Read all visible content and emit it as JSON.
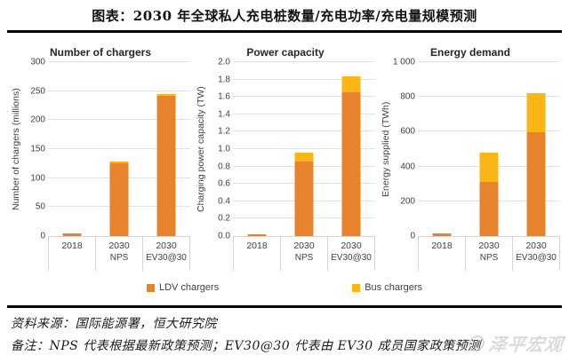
{
  "page": {
    "title": "图表：2030 年全球私人充电桩数量/充电功率/充电量规模预测",
    "source": "资料来源：国际能源署，恒大研究院",
    "note": "备注：NPS 代表根据最新政策预测；EV30@30 代表由 EV30 成员国家政策预测",
    "watermark": "泽平宏观"
  },
  "colors": {
    "ldv": "#e8822b",
    "bus": "#fbb616",
    "grid": "#e2e2e2",
    "axis_text": "#3f3f3f"
  },
  "legend": [
    {
      "label": "LDV chargers",
      "color_key": "ldv"
    },
    {
      "label": "Bus chargers",
      "color_key": "bus"
    }
  ],
  "chart_data": [
    {
      "type": "bar",
      "stacked": true,
      "title": "Number of chargers",
      "ylabel": "Number of chargers (millions)",
      "ylim": [
        0,
        300
      ],
      "yticks": [
        0,
        50,
        100,
        150,
        200,
        250,
        300
      ],
      "ytick_labels": [
        "0",
        "50",
        "100",
        "150",
        "200",
        "250",
        "300"
      ],
      "grid": true,
      "categories": [
        {
          "line1": "2018",
          "line2": ""
        },
        {
          "line1": "2030",
          "line2": "NPS"
        },
        {
          "line1": "2030",
          "line2": "EV30@30"
        }
      ],
      "series": [
        {
          "name": "LDV chargers",
          "values": [
            4,
            125,
            242
          ]
        },
        {
          "name": "Bus chargers",
          "values": [
            0,
            3,
            3
          ]
        }
      ]
    },
    {
      "type": "bar",
      "stacked": true,
      "title": "Power capacity",
      "ylabel": "Charging power capacity (TW)",
      "ylim": [
        0,
        2.0
      ],
      "yticks": [
        0,
        0.2,
        0.4,
        0.6,
        0.8,
        1.0,
        1.2,
        1.4,
        1.6,
        1.8,
        2.0
      ],
      "ytick_labels": [
        "0.0",
        "0.2",
        "0.4",
        "0.6",
        "0.8",
        "1.0",
        "1.2",
        "1.4",
        "1.6",
        "1.8",
        "2.0"
      ],
      "grid": true,
      "categories": [
        {
          "line1": "2018",
          "line2": ""
        },
        {
          "line1": "2030",
          "line2": "NPS"
        },
        {
          "line1": "2030",
          "line2": "EV30@30"
        }
      ],
      "series": [
        {
          "name": "LDV chargers",
          "values": [
            0.02,
            0.86,
            1.65
          ]
        },
        {
          "name": "Bus chargers",
          "values": [
            0,
            0.1,
            0.19
          ]
        }
      ]
    },
    {
      "type": "bar",
      "stacked": true,
      "title": "Energy demand",
      "ylabel": "Energy supplied (TWh)",
      "ylim": [
        0,
        1000
      ],
      "yticks": [
        0,
        200,
        400,
        600,
        800,
        1000
      ],
      "ytick_labels": [
        "0",
        "200",
        "400",
        "600",
        "800",
        "1 000"
      ],
      "grid": true,
      "categories": [
        {
          "line1": "2018",
          "line2": ""
        },
        {
          "line1": "2030",
          "line2": "NPS"
        },
        {
          "line1": "2030",
          "line2": "EV30@30"
        }
      ],
      "series": [
        {
          "name": "LDV chargers",
          "values": [
            15,
            310,
            595
          ]
        },
        {
          "name": "Bus chargers",
          "values": [
            0,
            170,
            225
          ]
        }
      ]
    }
  ]
}
